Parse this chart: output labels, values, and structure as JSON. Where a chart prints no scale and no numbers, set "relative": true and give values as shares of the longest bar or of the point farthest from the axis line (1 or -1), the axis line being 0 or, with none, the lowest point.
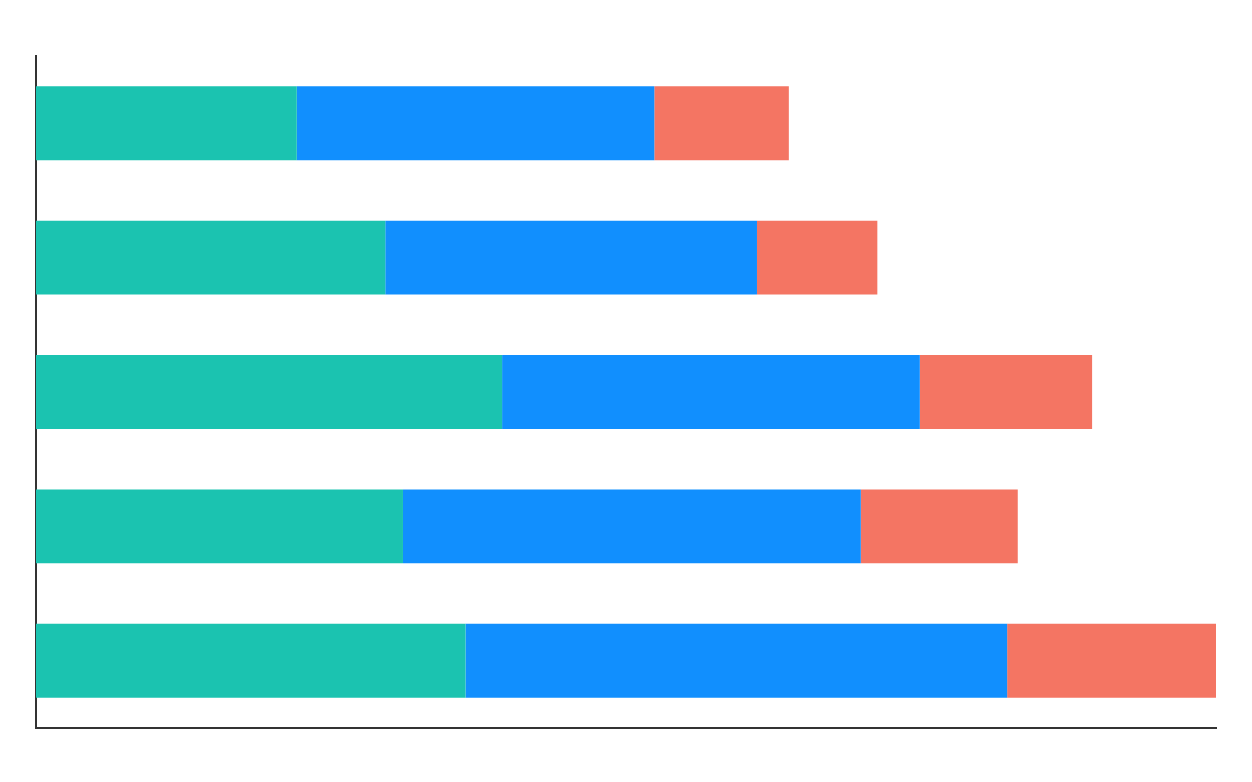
{
  "chart_data": {
    "type": "bar",
    "orientation": "horizontal",
    "stacked": true,
    "relative": true,
    "legend": false,
    "grid": false,
    "categories": [
      null,
      null,
      null,
      null,
      null
    ],
    "series": [
      {
        "color": "#1bc3b0",
        "values": [
          0.221,
          0.296,
          0.395,
          0.311,
          0.364
        ]
      },
      {
        "color": "#118ffe",
        "values": [
          0.303,
          0.315,
          0.354,
          0.388,
          0.459
        ]
      },
      {
        "color": "#f47563",
        "values": [
          0.114,
          0.102,
          0.146,
          0.133,
          0.177
        ]
      }
    ]
  }
}
